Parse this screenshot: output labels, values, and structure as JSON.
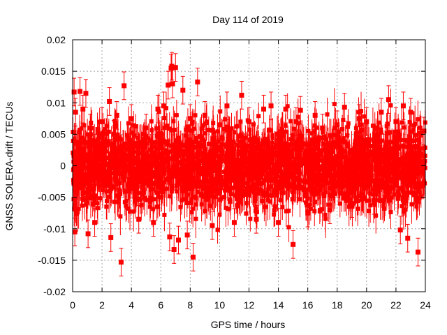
{
  "chart_data": {
    "type": "scatter",
    "title": "Day 114 of 2019",
    "xlabel": "GPS time / hours",
    "ylabel": "GNSS SOLERA-drift / TECUs",
    "xlim": [
      0,
      24
    ],
    "ylim": [
      -0.02,
      0.02
    ],
    "xticks": [
      "0",
      "2",
      "4",
      "6",
      "8",
      "10",
      "12",
      "14",
      "16",
      "18",
      "20",
      "22",
      "24"
    ],
    "yticks": [
      "-0.02",
      "-0.015",
      "-0.01",
      "-0.005",
      "0",
      "0.005",
      "0.01",
      "0.015",
      "0.02"
    ],
    "grid": true,
    "marker_color": "#ff0000",
    "marker": "square-with-errorbars",
    "series": [
      {
        "x": [
          0.1,
          0.15,
          0.2,
          0.5,
          0.7,
          0.9,
          1.05,
          1.2,
          1.5,
          2.0,
          2.5,
          2.6,
          2.8,
          3.0,
          3.3,
          3.5,
          4.0,
          4.5,
          5.0,
          5.5,
          5.8,
          6.2,
          6.5,
          6.6,
          6.7,
          6.75,
          6.8,
          6.9,
          7.0,
          7.2,
          7.5,
          7.8,
          8.0,
          8.2,
          8.5,
          9.0,
          9.5,
          10.0,
          10.5,
          11.0,
          11.5,
          12.0,
          12.5,
          13.0,
          13.5,
          14.0,
          14.5,
          15.0,
          15.2,
          15.5,
          16.0,
          16.5,
          17.0,
          17.5,
          18.0,
          18.5,
          19.0,
          19.5,
          20.0,
          20.5,
          21.0,
          21.5,
          22.0,
          22.3,
          22.5,
          22.8,
          23.0,
          23.5,
          23.9
        ],
        "y": [
          0.0117,
          -0.0105,
          0.0085,
          0.0118,
          0.009,
          0.0115,
          -0.0108,
          0.006,
          -0.009,
          0.007,
          0.0102,
          -0.0114,
          0.005,
          0.008,
          -0.0153,
          0.0127,
          0.0075,
          -0.0085,
          0.006,
          -0.009,
          0.009,
          0.0095,
          0.0128,
          -0.0113,
          0.0155,
          0.0158,
          0.013,
          -0.0133,
          0.0156,
          -0.0118,
          0.012,
          -0.011,
          0.0075,
          -0.0145,
          0.0133,
          0.008,
          -0.0095,
          0.0065,
          0.0095,
          -0.009,
          0.0112,
          0.007,
          -0.0085,
          0.009,
          0.0095,
          -0.009,
          0.009,
          -0.0125,
          0.007,
          0.0088,
          -0.0075,
          0.008,
          0.006,
          -0.007,
          0.0065,
          0.0093,
          -0.006,
          0.0075,
          0.007,
          -0.0055,
          0.0085,
          0.0105,
          0.007,
          -0.0102,
          0.0095,
          -0.0115,
          0.0085,
          -0.0137,
          0.0055
        ]
      }
    ]
  }
}
